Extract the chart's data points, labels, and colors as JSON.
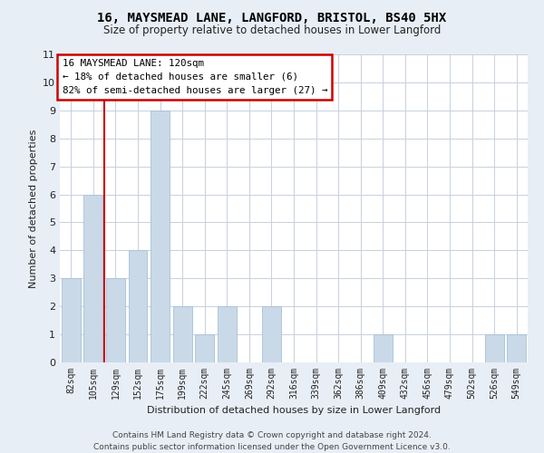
{
  "title": "16, MAYSMEAD LANE, LANGFORD, BRISTOL, BS40 5HX",
  "subtitle": "Size of property relative to detached houses in Lower Langford",
  "xlabel": "Distribution of detached houses by size in Lower Langford",
  "ylabel": "Number of detached properties",
  "categories": [
    "82sqm",
    "105sqm",
    "129sqm",
    "152sqm",
    "175sqm",
    "199sqm",
    "222sqm",
    "245sqm",
    "269sqm",
    "292sqm",
    "316sqm",
    "339sqm",
    "362sqm",
    "386sqm",
    "409sqm",
    "432sqm",
    "456sqm",
    "479sqm",
    "502sqm",
    "526sqm",
    "549sqm"
  ],
  "values": [
    3,
    6,
    3,
    4,
    9,
    2,
    1,
    2,
    0,
    2,
    0,
    0,
    0,
    0,
    1,
    0,
    0,
    0,
    0,
    1,
    1
  ],
  "bar_color": "#c9d9e8",
  "bar_edgecolor": "#a8c0d4",
  "vline_color": "#cc0000",
  "vline_x": 1.5,
  "annotation_text": "16 MAYSMEAD LANE: 120sqm\n← 18% of detached houses are smaller (6)\n82% of semi-detached houses are larger (27) →",
  "annotation_box_color": "#cc0000",
  "ylim": [
    0,
    11
  ],
  "yticks": [
    0,
    1,
    2,
    3,
    4,
    5,
    6,
    7,
    8,
    9,
    10,
    11
  ],
  "footer": "Contains HM Land Registry data © Crown copyright and database right 2024.\nContains public sector information licensed under the Open Government Licence v3.0.",
  "bg_color": "#e8eef6",
  "plot_bg_color": "#ffffff",
  "grid_color": "#c8d0dc"
}
